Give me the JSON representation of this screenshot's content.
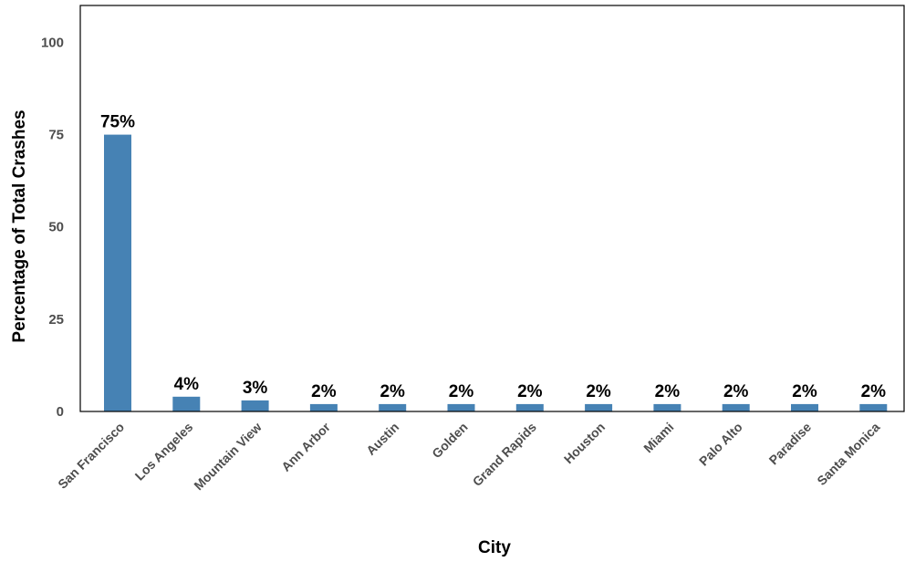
{
  "chart_data": {
    "type": "bar",
    "title": "",
    "xlabel": "City",
    "ylabel": "Percentage of Total Crashes",
    "ylim": [
      0,
      110
    ],
    "yticks": [
      0,
      25,
      50,
      75,
      100
    ],
    "grid": false,
    "legend": "none",
    "bar_color": "#4682b4",
    "categories": [
      "San Francisco",
      "Los Angeles",
      "Mountain View",
      "Ann Arbor",
      "Austin",
      "Golden",
      "Grand Rapids",
      "Houston",
      "Miami",
      "Palo Alto",
      "Paradise",
      "Santa Monica"
    ],
    "values": [
      75,
      4,
      3,
      2,
      2,
      2,
      2,
      2,
      2,
      2,
      2,
      2
    ],
    "data_labels": [
      "75%",
      "4%",
      "3%",
      "2%",
      "2%",
      "2%",
      "2%",
      "2%",
      "2%",
      "2%",
      "2%",
      "2%"
    ]
  }
}
